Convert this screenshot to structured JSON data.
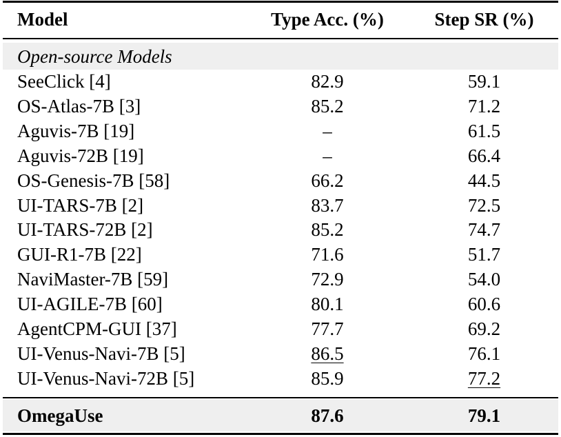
{
  "table": {
    "header": [
      "Model",
      "Type Acc. (%)",
      "Step SR (%)"
    ],
    "section": "Open-source Models",
    "rows": [
      [
        "SeeClick [4]",
        "82.9",
        "59.1"
      ],
      [
        "OS-Atlas-7B [3]",
        "85.2",
        "71.2"
      ],
      [
        "Aguvis-7B [19]",
        "–",
        "61.5"
      ],
      [
        "Aguvis-72B [19]",
        "–",
        "66.4"
      ],
      [
        "OS-Genesis-7B [58]",
        "66.2",
        "44.5"
      ],
      [
        "UI-TARS-7B [2]",
        "83.7",
        "72.5"
      ],
      [
        "UI-TARS-72B [2]",
        "85.2",
        "74.7"
      ],
      [
        "GUI-R1-7B [22]",
        "71.6",
        "51.7"
      ],
      [
        "NaviMaster-7B [59]",
        "72.9",
        "54.0"
      ],
      [
        "UI-AGILE-7B [60]",
        "80.1",
        "60.6"
      ],
      [
        "AgentCPM-GUI [37]",
        "77.7",
        "69.2"
      ],
      [
        "UI-Venus-Navi-7B [5]",
        {
          "text": "86.5",
          "underline": true
        },
        "76.1"
      ],
      [
        "UI-Venus-Navi-72B [5]",
        "85.9",
        {
          "text": "77.2",
          "underline": true
        }
      ]
    ],
    "final_row": [
      "OmegaUse",
      "87.6",
      "79.1"
    ]
  }
}
